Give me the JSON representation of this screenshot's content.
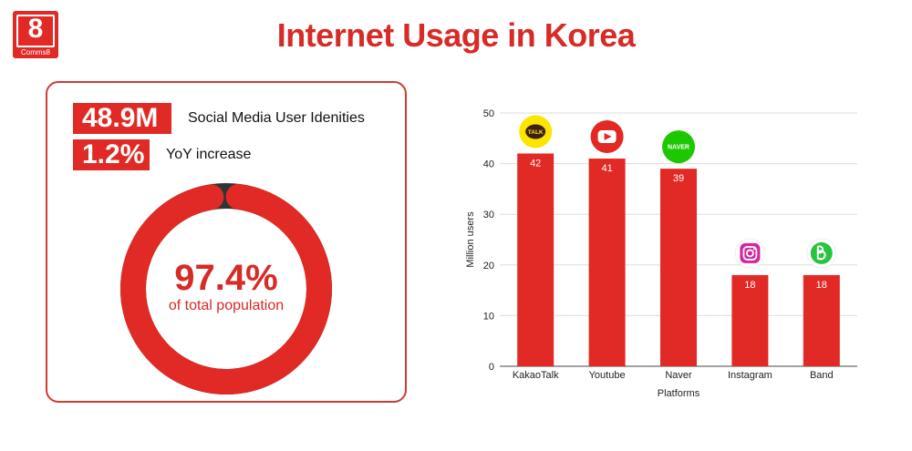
{
  "logo": {
    "digit": "8",
    "word": "Comms8"
  },
  "header": {
    "title": "Internet Usage in Korea"
  },
  "stats": [
    {
      "value": "48.9M",
      "label": "Social Media User Idenities"
    },
    {
      "value": "1.2%",
      "label": "YoY increase"
    }
  ],
  "donut": {
    "percent_label": "97.4%",
    "caption": "of total population",
    "fraction": 0.974,
    "fill_color": "#e12a25",
    "rest_color": "#333333"
  },
  "chart_data": {
    "type": "bar",
    "categories": [
      "KakaoTalk",
      "Youtube",
      "Naver",
      "Instagram",
      "Band"
    ],
    "values": [
      42,
      41,
      39,
      18,
      18
    ],
    "data_labels": [
      "42",
      "41",
      "39",
      "18",
      "18"
    ],
    "title": "",
    "xlabel": "Platforms",
    "ylabel": "Million users",
    "ylim": [
      0,
      50
    ],
    "yticks": [
      0,
      10,
      20,
      30,
      40,
      50
    ],
    "grid": true,
    "bar_color": "#e12a25",
    "icons": [
      "kakaotalk-icon",
      "youtube-icon",
      "naver-icon",
      "instagram-icon",
      "band-icon"
    ],
    "icon_texts": [
      "TALK",
      "",
      "NAVER",
      "",
      ""
    ]
  }
}
